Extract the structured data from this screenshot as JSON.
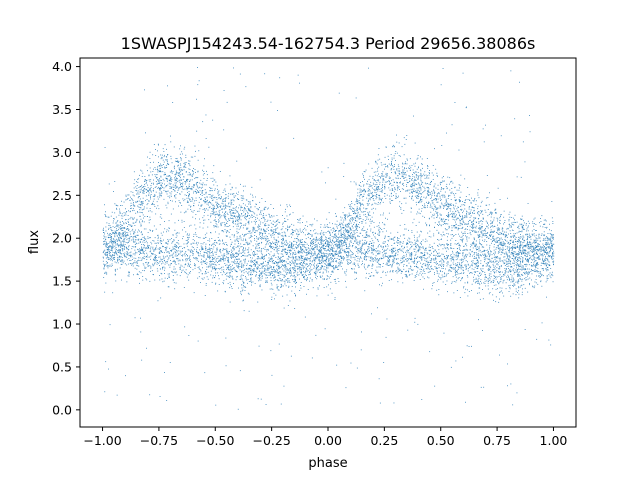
{
  "chart_data": {
    "type": "scatter",
    "title": "1SWASPJ154243.54-162754.3 Period 29656.38086s",
    "xlabel": "phase",
    "ylabel": "flux",
    "xlim": [
      -1.1,
      1.1
    ],
    "ylim": [
      -0.2,
      4.1
    ],
    "x_ticks": [
      -1.0,
      -0.75,
      -0.5,
      -0.25,
      0.0,
      0.25,
      0.5,
      0.75,
      1.0
    ],
    "x_tick_labels": [
      "−1.00",
      "−0.75",
      "−0.50",
      "−0.25",
      "0.00",
      "0.25",
      "0.50",
      "0.75",
      "1.00"
    ],
    "y_ticks": [
      0.0,
      0.5,
      1.0,
      1.5,
      2.0,
      2.5,
      3.0,
      3.5,
      4.0
    ],
    "y_tick_labels": [
      "0.0",
      "0.5",
      "1.0",
      "1.5",
      "2.0",
      "2.5",
      "3.0",
      "3.5",
      "4.0"
    ],
    "grid": false,
    "marker_color": "#1f77b4",
    "phase_range": [
      -1.0,
      1.0
    ],
    "upper_branch": {
      "description": "brighter branch, period 1 in phase",
      "x": [
        0.0,
        0.05,
        0.1,
        0.15,
        0.2,
        0.25,
        0.3,
        0.35,
        0.4,
        0.45,
        0.5,
        0.55,
        0.6,
        0.65,
        0.7,
        0.75,
        0.8,
        0.85,
        0.9,
        0.95,
        1.0
      ],
      "y": [
        1.85,
        2.0,
        2.2,
        2.4,
        2.55,
        2.68,
        2.72,
        2.7,
        2.6,
        2.5,
        2.4,
        2.32,
        2.25,
        2.18,
        2.1,
        2.04,
        1.98,
        1.93,
        1.9,
        1.87,
        1.85
      ],
      "spread": 0.17
    },
    "lower_branch": {
      "description": "fainter branch, period 1 in phase",
      "x": [
        0.0,
        0.05,
        0.1,
        0.15,
        0.2,
        0.25,
        0.3,
        0.35,
        0.4,
        0.45,
        0.5,
        0.55,
        0.6,
        0.65,
        0.7,
        0.75,
        0.8,
        0.85,
        0.9,
        0.95,
        1.0
      ],
      "y": [
        1.85,
        1.88,
        1.9,
        1.88,
        1.85,
        1.83,
        1.82,
        1.81,
        1.8,
        1.78,
        1.76,
        1.74,
        1.72,
        1.7,
        1.68,
        1.66,
        1.65,
        1.67,
        1.72,
        1.8,
        1.85
      ],
      "spread": 0.16
    },
    "outlier_range": [
      0.0,
      4.0
    ]
  }
}
